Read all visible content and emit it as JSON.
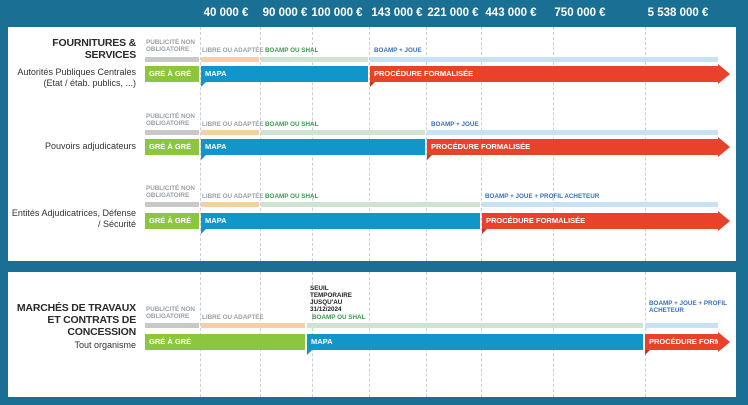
{
  "thresholds": [
    "40 000 €",
    "90 000 €",
    "100 000 €",
    "143 000 €",
    "221 000 €",
    "443 000 €",
    "750 000 €",
    "5 538 000 €"
  ],
  "labels": {
    "publicite_non_obligatoire": "PUBLICITÉ NON OBLIGATOIRE",
    "libre_ou_adaptee": "LIBRE OU ADAPTÉE",
    "boamp_ou_shal": "BOAMP OU SHAL",
    "boamp_joue": "BOAMP + JOUE",
    "boamp_joue_profil": "BOAMP + JOUE + PROFIL ACHETEUR",
    "boamp_joue_profil_multiline": "BOAMP + JOUE + PROFIL ACHETEUR",
    "seuil_temporaire": "SEUIL TEMPORAIRE JUSQU'AU 31/12/2024",
    "gre_a_gre": "GRÉ À GRÉ",
    "mapa": "MAPA",
    "procedure_formalisee": "PROCÉDURE FORMALISÉE",
    "procedure_form_short": "PROCÉDURE FORM."
  },
  "panel1": {
    "title": "FOURNITURES & SERVICES",
    "rows": [
      {
        "label": "Autorités Publiques Centrales (Etat / étab. publics, ...)"
      },
      {
        "label": "Pouvoirs adjudicateurs"
      },
      {
        "label": "Entités Adjudicatrices, Défense / Sécurité"
      }
    ]
  },
  "panel2": {
    "title": "MARCHÉS DE TRAVAUX ET CONTRATS DE CONCESSION",
    "rows": [
      {
        "label": "Tout organisme"
      }
    ]
  },
  "colors": {
    "background": "#1a6f94",
    "gre_a_gre": "#8cc63f",
    "mapa": "#1296c9",
    "procedure_formalisee": "#e8432a",
    "libre_ou_adaptee": "#f6cfa5",
    "boamp_ou_shal": "#cfe3d1",
    "boamp_joue": "#c6e2f4"
  }
}
